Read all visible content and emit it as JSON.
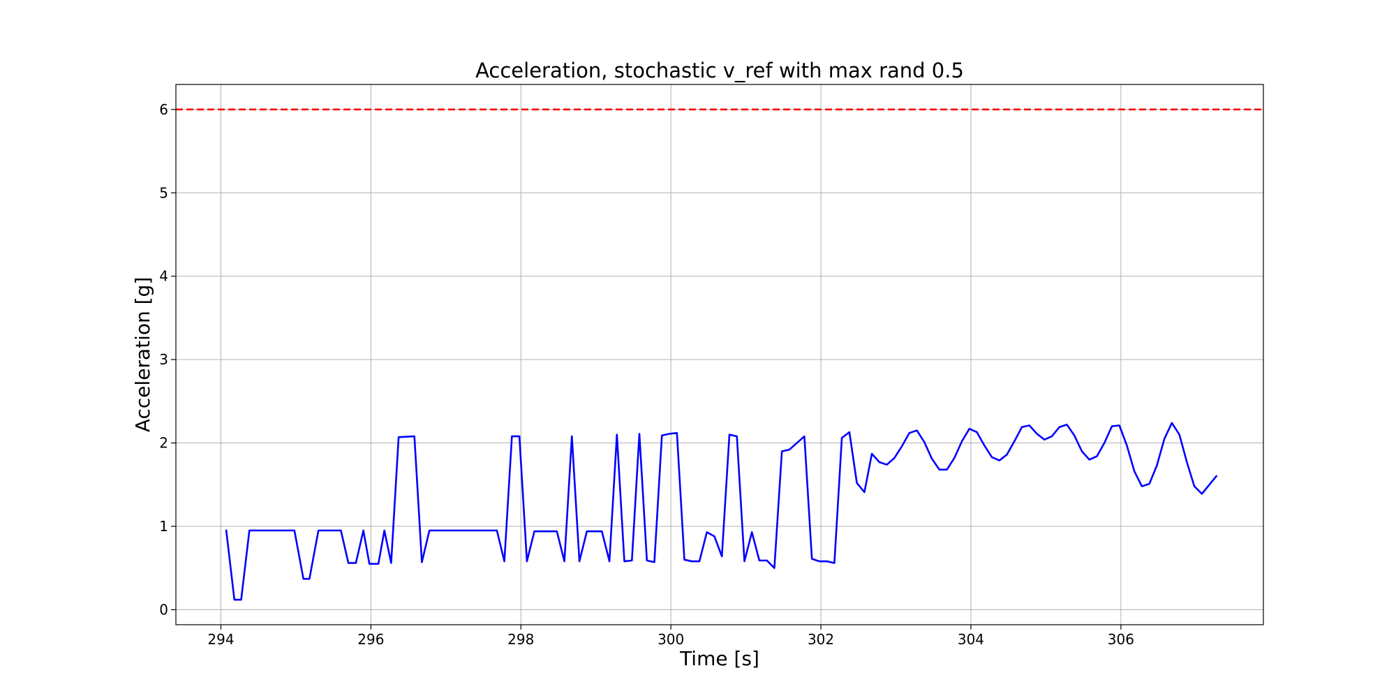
{
  "chart_data": {
    "type": "line",
    "title": "Acceleration, stochastic v_ref with max rand 0.5",
    "xlabel": "Time [s]",
    "ylabel": "Acceleration [g]",
    "xlim": [
      293.4,
      307.9
    ],
    "ylim": [
      -0.18,
      6.3
    ],
    "xticks": [
      294,
      296,
      298,
      300,
      302,
      304,
      306
    ],
    "yticks": [
      0,
      1,
      2,
      3,
      4,
      5,
      6
    ],
    "grid": true,
    "series": [
      {
        "color": "#0000ff",
        "style": "solid",
        "x": [
          294.07,
          294.18,
          294.27,
          294.38,
          294.98,
          295.1,
          295.18,
          295.3,
          295.6,
          295.7,
          295.8,
          295.9,
          295.98,
          296.1,
          296.18,
          296.27,
          296.37,
          296.58,
          296.68,
          296.78,
          297.68,
          297.78,
          297.88,
          297.98,
          298.08,
          298.18,
          298.48,
          298.58,
          298.68,
          298.78,
          298.88,
          299.08,
          299.18,
          299.28,
          299.38,
          299.48,
          299.58,
          299.68,
          299.78,
          299.88,
          299.98,
          300.08,
          300.18,
          300.28,
          300.38,
          300.48,
          300.58,
          300.68,
          300.78,
          300.88,
          300.98,
          301.08,
          301.18,
          301.28,
          301.38,
          301.48,
          301.58,
          301.68,
          301.78,
          301.88,
          301.98,
          302.08,
          302.18,
          302.28,
          302.38,
          302.48,
          302.58,
          302.68,
          302.78,
          302.88,
          302.98,
          303.08,
          303.18,
          303.28,
          303.38,
          303.48,
          303.58,
          303.68,
          303.78,
          303.88,
          303.98,
          304.08,
          304.18,
          304.28,
          304.38,
          304.48,
          304.58,
          304.68,
          304.78,
          304.88,
          304.98,
          305.08,
          305.18,
          305.28,
          305.38,
          305.48,
          305.58,
          305.68,
          305.78,
          305.88,
          305.98,
          306.08,
          306.18,
          306.28,
          306.38,
          306.48,
          306.58,
          306.68,
          306.78,
          306.88,
          306.98,
          307.08,
          307.28
        ],
        "y": [
          0.96,
          0.12,
          0.12,
          0.95,
          0.95,
          0.37,
          0.37,
          0.95,
          0.95,
          0.56,
          0.56,
          0.95,
          0.55,
          0.55,
          0.95,
          0.56,
          2.07,
          2.08,
          0.57,
          0.95,
          0.95,
          0.58,
          2.08,
          2.08,
          0.58,
          0.94,
          0.94,
          0.58,
          2.08,
          0.58,
          0.94,
          0.94,
          0.58,
          2.1,
          0.58,
          0.59,
          2.11,
          0.59,
          0.57,
          2.09,
          2.11,
          2.12,
          0.6,
          0.58,
          0.58,
          0.93,
          0.88,
          0.64,
          2.1,
          2.08,
          0.58,
          0.93,
          0.59,
          0.59,
          0.5,
          1.9,
          1.92,
          2.0,
          2.08,
          0.61,
          0.58,
          0.58,
          0.56,
          2.06,
          2.13,
          1.52,
          1.41,
          1.87,
          1.77,
          1.74,
          1.82,
          1.96,
          2.12,
          2.15,
          2.01,
          1.81,
          1.68,
          1.68,
          1.82,
          2.02,
          2.17,
          2.13,
          1.97,
          1.83,
          1.79,
          1.86,
          2.02,
          2.19,
          2.21,
          2.11,
          2.04,
          2.08,
          2.19,
          2.22,
          2.09,
          1.9,
          1.8,
          1.84,
          2.0,
          2.2,
          2.21,
          1.97,
          1.66,
          1.48,
          1.51,
          1.73,
          2.05,
          2.24,
          2.1,
          1.77,
          1.48,
          1.39,
          1.61
        ]
      },
      {
        "color": "#ff0000",
        "style": "dashed",
        "x": [
          293.4,
          307.9
        ],
        "y": [
          6.0,
          6.0
        ]
      }
    ]
  }
}
